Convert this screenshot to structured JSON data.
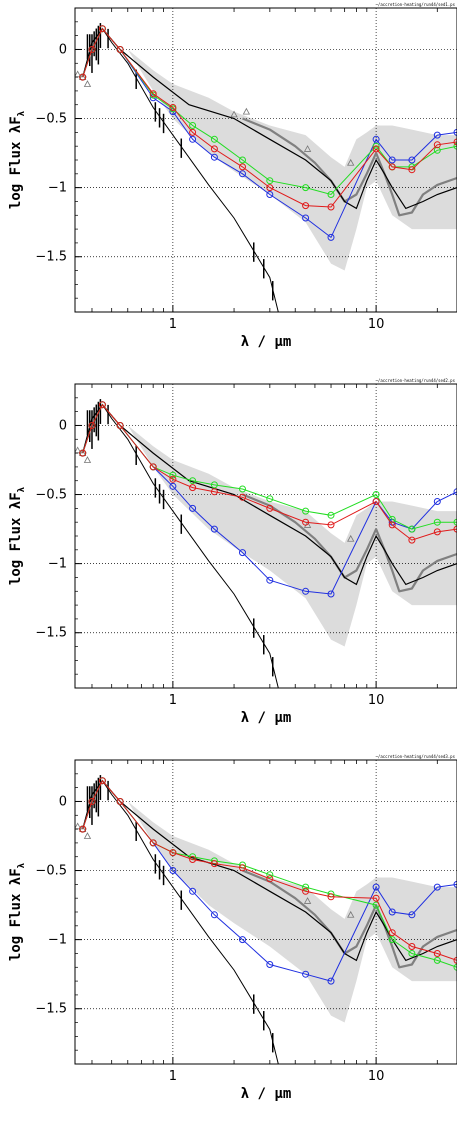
{
  "chart_data": [
    {
      "type": "line",
      "tag": "~/accretion-heating/run44/sed1.ps",
      "xlabel": "λ / μm",
      "ylabel": "log Flux λF",
      "ylabel_sub": "λ",
      "xscale": "log",
      "xlim": [
        0.33,
        25
      ],
      "ylim": [
        -1.9,
        0.3
      ],
      "xticks": [
        {
          "v": 1,
          "label": "1"
        },
        {
          "v": 10,
          "label": "10"
        }
      ],
      "yticks": [
        {
          "v": 0,
          "label": "0"
        },
        {
          "v": -0.5,
          "label": "−0.5"
        },
        {
          "v": -1,
          "label": "−1"
        },
        {
          "v": -1.5,
          "label": "−1.5"
        }
      ],
      "grid": true,
      "colors": {
        "blue": "#1f2fe0",
        "red": "#e01a1a",
        "green": "#22dd22",
        "band": "#dcdcdc",
        "gray": "#808080",
        "black": "#000000"
      },
      "band": {
        "x": [
          0.6,
          0.8,
          1.0,
          1.5,
          2.0,
          3.0,
          4.5,
          6.0,
          7.0,
          8.0,
          9.0,
          10.0,
          12.0,
          15.0,
          20.0,
          25.0
        ],
        "upper": [
          0.0,
          -0.15,
          -0.25,
          -0.35,
          -0.45,
          -0.55,
          -0.62,
          -0.78,
          -0.85,
          -0.65,
          -0.6,
          -0.55,
          -0.55,
          -0.58,
          -0.62,
          -0.62
        ],
        "lower": [
          0.0,
          -0.3,
          -0.5,
          -0.75,
          -0.88,
          -1.05,
          -1.25,
          -1.55,
          -1.6,
          -1.3,
          -1.0,
          -0.95,
          -1.2,
          -1.3,
          -1.3,
          -1.3
        ]
      },
      "black_median": {
        "x": [
          0.36,
          0.4,
          0.45,
          0.55,
          0.8,
          1.2,
          2.0,
          3.0,
          4.5,
          6.0,
          7.0,
          8.0,
          9.0,
          10.0,
          11.0,
          12.0,
          14.0,
          17.0,
          20.0,
          25.0
        ],
        "y": [
          -0.2,
          0.05,
          0.15,
          0.0,
          -0.2,
          -0.4,
          -0.5,
          -0.65,
          -0.8,
          -0.95,
          -1.1,
          -1.15,
          -0.95,
          -0.8,
          -0.9,
          -1.0,
          -1.15,
          -1.1,
          -1.05,
          -1.0
        ]
      },
      "photosphere": {
        "x": [
          0.4,
          0.45,
          0.5,
          0.6,
          0.8,
          1.0,
          1.5,
          2.0,
          3.0,
          3.3
        ],
        "y": [
          0.05,
          0.15,
          0.05,
          -0.1,
          -0.42,
          -0.62,
          -0.98,
          -1.22,
          -1.65,
          -1.9
        ]
      },
      "observed_ir": {
        "x": [
          2.2,
          3.0,
          4.0,
          5.0,
          6.0,
          7.0,
          8.0,
          9.0,
          10.0,
          11.0,
          12.0,
          13.0,
          15.0,
          17.0,
          20.0,
          25.0
        ],
        "y": [
          -0.5,
          -0.58,
          -0.7,
          -0.82,
          -0.95,
          -1.1,
          -1.05,
          -0.9,
          -0.75,
          -0.9,
          -1.05,
          -1.2,
          -1.18,
          -1.05,
          -0.98,
          -0.93
        ]
      },
      "triangles": {
        "x": [
          0.34,
          0.36,
          0.38,
          2.0,
          2.3,
          4.6,
          7.5
        ],
        "y": [
          -0.18,
          -0.2,
          -0.25,
          -0.47,
          -0.45,
          -0.72,
          -0.82
        ]
      },
      "series": [
        {
          "color": "blue",
          "x": [
            0.36,
            0.4,
            0.45,
            0.55,
            0.8,
            1.0,
            1.25,
            1.6,
            2.2,
            3.0,
            4.5,
            6.0,
            10.0,
            12.0,
            15.0,
            20.0,
            25.0
          ],
          "y": [
            -0.2,
            0.0,
            0.15,
            0.0,
            -0.35,
            -0.45,
            -0.65,
            -0.78,
            -0.9,
            -1.05,
            -1.22,
            -1.36,
            -0.65,
            -0.8,
            -0.8,
            -0.62,
            -0.6
          ]
        },
        {
          "color": "green",
          "x": [
            0.36,
            0.4,
            0.45,
            0.55,
            0.8,
            1.0,
            1.25,
            1.6,
            2.2,
            3.0,
            4.5,
            6.0,
            10.0,
            12.0,
            15.0,
            20.0,
            25.0
          ],
          "y": [
            -0.2,
            0.0,
            0.15,
            0.0,
            -0.33,
            -0.43,
            -0.55,
            -0.65,
            -0.8,
            -0.95,
            -1.0,
            -1.05,
            -0.7,
            -0.85,
            -0.85,
            -0.73,
            -0.7
          ]
        },
        {
          "color": "red",
          "x": [
            0.36,
            0.4,
            0.45,
            0.55,
            0.8,
            1.0,
            1.25,
            1.6,
            2.2,
            3.0,
            4.5,
            6.0,
            10.0,
            12.0,
            15.0,
            20.0,
            25.0
          ],
          "y": [
            -0.2,
            0.0,
            0.15,
            0.0,
            -0.32,
            -0.42,
            -0.6,
            -0.72,
            -0.85,
            -1.0,
            -1.13,
            -1.14,
            -0.72,
            -0.85,
            -0.87,
            -0.69,
            -0.67
          ]
        }
      ]
    },
    {
      "type": "line",
      "tag": "~/accretion-heating/run44/sed2.ps",
      "xlabel": "λ / μm",
      "ylabel": "log Flux λF",
      "ylabel_sub": "λ",
      "xscale": "log",
      "xlim": [
        0.33,
        25
      ],
      "ylim": [
        -1.9,
        0.3
      ],
      "xticks": [
        {
          "v": 1,
          "label": "1"
        },
        {
          "v": 10,
          "label": "10"
        }
      ],
      "yticks": [
        {
          "v": 0,
          "label": "0"
        },
        {
          "v": -0.5,
          "label": "−0.5"
        },
        {
          "v": -1,
          "label": "−1"
        },
        {
          "v": -1.5,
          "label": "−1.5"
        }
      ],
      "grid": true,
      "colors": {
        "blue": "#1f2fe0",
        "red": "#e01a1a",
        "green": "#22dd22",
        "band": "#dcdcdc",
        "gray": "#808080",
        "black": "#000000"
      },
      "band": {
        "x": [
          0.6,
          0.8,
          1.0,
          1.5,
          2.0,
          3.0,
          4.5,
          6.0,
          7.0,
          8.0,
          9.0,
          10.0,
          12.0,
          15.0,
          20.0,
          25.0
        ],
        "upper": [
          0.0,
          -0.15,
          -0.25,
          -0.35,
          -0.45,
          -0.55,
          -0.62,
          -0.78,
          -0.85,
          -0.65,
          -0.6,
          -0.55,
          -0.55,
          -0.58,
          -0.62,
          -0.62
        ],
        "lower": [
          0.0,
          -0.3,
          -0.5,
          -0.75,
          -0.88,
          -1.05,
          -1.25,
          -1.55,
          -1.6,
          -1.3,
          -1.0,
          -0.95,
          -1.2,
          -1.3,
          -1.3,
          -1.3
        ]
      },
      "black_median": {
        "x": [
          0.36,
          0.4,
          0.45,
          0.55,
          0.8,
          1.2,
          2.0,
          3.0,
          4.5,
          6.0,
          7.0,
          8.0,
          9.0,
          10.0,
          11.0,
          12.0,
          14.0,
          17.0,
          20.0,
          25.0
        ],
        "y": [
          -0.2,
          0.05,
          0.15,
          0.0,
          -0.2,
          -0.4,
          -0.5,
          -0.65,
          -0.8,
          -0.95,
          -1.1,
          -1.15,
          -0.95,
          -0.8,
          -0.9,
          -1.0,
          -1.15,
          -1.1,
          -1.05,
          -1.0
        ]
      },
      "photosphere": {
        "x": [
          0.4,
          0.45,
          0.5,
          0.6,
          0.8,
          1.0,
          1.5,
          2.0,
          3.0,
          3.3
        ],
        "y": [
          0.05,
          0.15,
          0.05,
          -0.1,
          -0.42,
          -0.62,
          -0.98,
          -1.22,
          -1.65,
          -1.9
        ]
      },
      "observed_ir": {
        "x": [
          2.2,
          3.0,
          4.0,
          5.0,
          6.0,
          7.0,
          8.0,
          9.0,
          10.0,
          11.0,
          12.0,
          13.0,
          15.0,
          17.0,
          20.0,
          25.0
        ],
        "y": [
          -0.5,
          -0.58,
          -0.7,
          -0.82,
          -0.95,
          -1.1,
          -1.05,
          -0.9,
          -0.75,
          -0.9,
          -1.05,
          -1.2,
          -1.18,
          -1.05,
          -0.98,
          -0.93
        ]
      },
      "triangles": {
        "x": [
          0.34,
          0.36,
          0.38,
          4.6,
          7.5
        ],
        "y": [
          -0.18,
          -0.2,
          -0.25,
          -0.72,
          -0.82
        ]
      },
      "series": [
        {
          "color": "blue",
          "x": [
            0.36,
            0.4,
            0.45,
            0.55,
            0.8,
            1.0,
            1.25,
            1.6,
            2.2,
            3.0,
            4.5,
            6.0,
            10.0,
            12.0,
            15.0,
            20.0,
            25.0
          ],
          "y": [
            -0.2,
            0.0,
            0.15,
            0.0,
            -0.3,
            -0.44,
            -0.6,
            -0.75,
            -0.92,
            -1.12,
            -1.2,
            -1.22,
            -0.55,
            -0.7,
            -0.75,
            -0.55,
            -0.48
          ]
        },
        {
          "color": "green",
          "x": [
            0.36,
            0.4,
            0.45,
            0.55,
            0.8,
            1.0,
            1.25,
            1.6,
            2.2,
            3.0,
            4.5,
            6.0,
            10.0,
            12.0,
            15.0,
            20.0,
            25.0
          ],
          "y": [
            -0.2,
            0.0,
            0.15,
            0.0,
            -0.3,
            -0.36,
            -0.4,
            -0.43,
            -0.46,
            -0.53,
            -0.62,
            -0.65,
            -0.5,
            -0.68,
            -0.75,
            -0.7,
            -0.7
          ]
        },
        {
          "color": "red",
          "x": [
            0.36,
            0.4,
            0.45,
            0.55,
            0.8,
            1.0,
            1.25,
            1.6,
            2.2,
            3.0,
            4.5,
            6.0,
            10.0,
            12.0,
            15.0,
            20.0,
            25.0
          ],
          "y": [
            -0.2,
            0.0,
            0.15,
            0.0,
            -0.3,
            -0.39,
            -0.45,
            -0.48,
            -0.52,
            -0.6,
            -0.7,
            -0.72,
            -0.55,
            -0.72,
            -0.83,
            -0.77,
            -0.75
          ]
        }
      ]
    },
    {
      "type": "line",
      "tag": "~/accretion-heating/run44/sed3.ps",
      "xlabel": "λ / μm",
      "ylabel": "log Flux λF",
      "ylabel_sub": "λ",
      "xscale": "log",
      "xlim": [
        0.33,
        25
      ],
      "ylim": [
        -1.9,
        0.3
      ],
      "xticks": [
        {
          "v": 1,
          "label": "1"
        },
        {
          "v": 10,
          "label": "10"
        }
      ],
      "yticks": [
        {
          "v": 0,
          "label": "0"
        },
        {
          "v": -0.5,
          "label": "−0.5"
        },
        {
          "v": -1,
          "label": "−1"
        },
        {
          "v": -1.5,
          "label": "−1.5"
        }
      ],
      "grid": true,
      "colors": {
        "blue": "#1f2fe0",
        "red": "#e01a1a",
        "green": "#22dd22",
        "band": "#dcdcdc",
        "gray": "#808080",
        "black": "#000000"
      },
      "band": {
        "x": [
          0.6,
          0.8,
          1.0,
          1.5,
          2.0,
          3.0,
          4.5,
          6.0,
          7.0,
          8.0,
          9.0,
          10.0,
          12.0,
          15.0,
          20.0,
          25.0
        ],
        "upper": [
          0.0,
          -0.15,
          -0.25,
          -0.35,
          -0.45,
          -0.55,
          -0.62,
          -0.78,
          -0.85,
          -0.65,
          -0.6,
          -0.55,
          -0.55,
          -0.58,
          -0.62,
          -0.62
        ],
        "lower": [
          0.0,
          -0.3,
          -0.5,
          -0.75,
          -0.88,
          -1.05,
          -1.25,
          -1.55,
          -1.6,
          -1.3,
          -1.0,
          -0.95,
          -1.2,
          -1.3,
          -1.3,
          -1.3
        ]
      },
      "black_median": {
        "x": [
          0.36,
          0.4,
          0.45,
          0.55,
          0.8,
          1.2,
          2.0,
          3.0,
          4.5,
          6.0,
          7.0,
          8.0,
          9.0,
          10.0,
          11.0,
          12.0,
          14.0,
          17.0,
          20.0,
          25.0
        ],
        "y": [
          -0.2,
          0.05,
          0.15,
          0.0,
          -0.2,
          -0.4,
          -0.5,
          -0.65,
          -0.8,
          -0.95,
          -1.1,
          -1.15,
          -0.95,
          -0.8,
          -0.9,
          -1.0,
          -1.15,
          -1.1,
          -1.05,
          -1.0
        ]
      },
      "photosphere": {
        "x": [
          0.4,
          0.45,
          0.5,
          0.6,
          0.8,
          1.0,
          1.5,
          2.0,
          3.0,
          3.3
        ],
        "y": [
          0.05,
          0.15,
          0.05,
          -0.1,
          -0.42,
          -0.62,
          -0.98,
          -1.22,
          -1.65,
          -1.9
        ]
      },
      "observed_ir": {
        "x": [
          2.2,
          3.0,
          4.0,
          5.0,
          6.0,
          7.0,
          8.0,
          9.0,
          10.0,
          11.0,
          12.0,
          13.0,
          15.0,
          17.0,
          20.0,
          25.0
        ],
        "y": [
          -0.5,
          -0.58,
          -0.7,
          -0.82,
          -0.95,
          -1.1,
          -1.05,
          -0.9,
          -0.75,
          -0.9,
          -1.05,
          -1.2,
          -1.18,
          -1.05,
          -0.98,
          -0.93
        ]
      },
      "triangles": {
        "x": [
          0.34,
          0.36,
          0.38,
          4.6,
          7.5
        ],
        "y": [
          -0.18,
          -0.2,
          -0.25,
          -0.72,
          -0.82
        ]
      },
      "series": [
        {
          "color": "blue",
          "x": [
            0.36,
            0.4,
            0.45,
            0.55,
            0.8,
            1.0,
            1.25,
            1.6,
            2.2,
            3.0,
            4.5,
            6.0,
            10.0,
            12.0,
            15.0,
            20.0,
            25.0
          ],
          "y": [
            -0.2,
            0.0,
            0.15,
            0.0,
            -0.3,
            -0.5,
            -0.65,
            -0.82,
            -1.0,
            -1.18,
            -1.25,
            -1.3,
            -0.62,
            -0.8,
            -0.82,
            -0.62,
            -0.6
          ]
        },
        {
          "color": "green",
          "x": [
            0.36,
            0.4,
            0.45,
            0.55,
            0.8,
            1.0,
            1.25,
            1.6,
            2.2,
            3.0,
            4.5,
            6.0,
            10.0,
            12.0,
            15.0,
            20.0,
            25.0
          ],
          "y": [
            -0.2,
            0.0,
            0.15,
            0.0,
            -0.3,
            -0.37,
            -0.4,
            -0.43,
            -0.46,
            -0.53,
            -0.62,
            -0.67,
            -0.75,
            -1.0,
            -1.1,
            -1.15,
            -1.2
          ]
        },
        {
          "color": "red",
          "x": [
            0.36,
            0.4,
            0.45,
            0.55,
            0.8,
            1.0,
            1.25,
            1.6,
            2.2,
            3.0,
            4.5,
            6.0,
            10.0,
            12.0,
            15.0,
            20.0,
            25.0
          ],
          "y": [
            -0.2,
            0.0,
            0.15,
            0.0,
            -0.3,
            -0.37,
            -0.42,
            -0.45,
            -0.48,
            -0.56,
            -0.65,
            -0.69,
            -0.7,
            -0.95,
            -1.05,
            -1.1,
            -1.15
          ]
        }
      ]
    }
  ]
}
